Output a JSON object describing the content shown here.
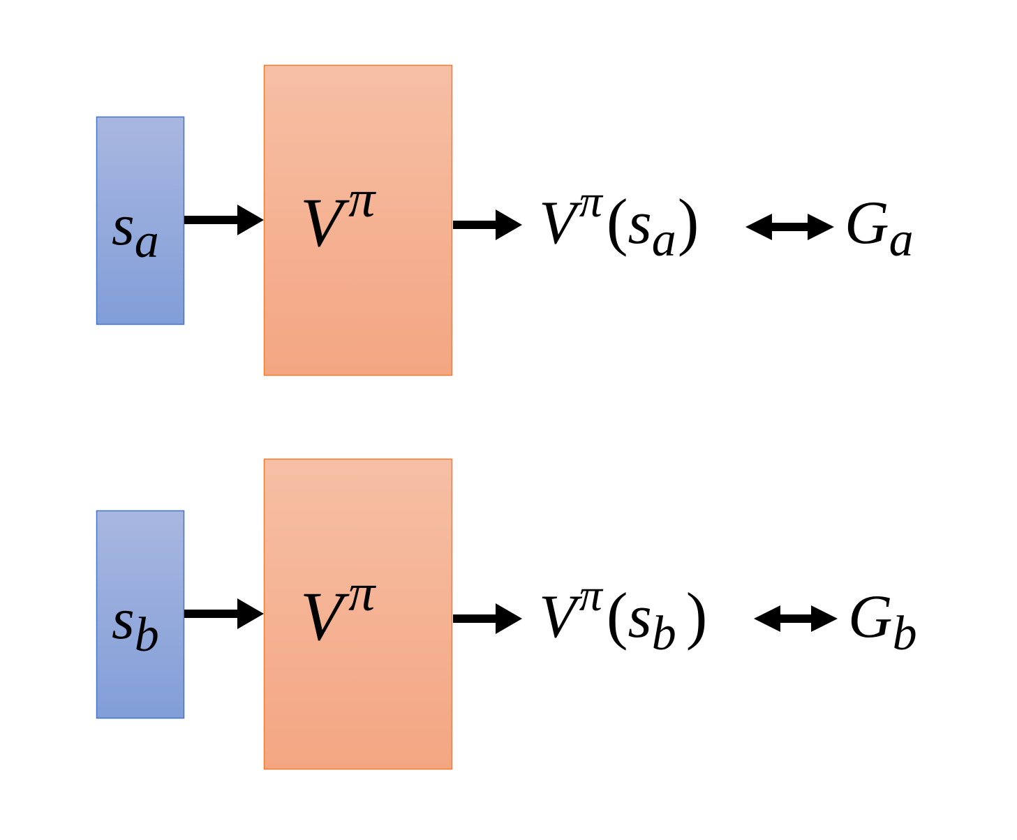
{
  "colors": {
    "input_fill_top": "#a8b7e0",
    "input_fill_bottom": "#829ed8",
    "input_stroke": "#4472c4",
    "model_fill_top": "#f6bfa5",
    "model_fill_bottom": "#f4a682",
    "model_stroke": "#ed7d31",
    "arrow": "#000000"
  },
  "rows": [
    {
      "input": {
        "base": "s",
        "sub": "a"
      },
      "model": {
        "base": "V",
        "sup": "π"
      },
      "output": {
        "base": "V",
        "sup": "π",
        "open": "(",
        "arg": "s",
        "sub": "a",
        "close": ")"
      },
      "target": {
        "base": "G",
        "sub": "a"
      }
    },
    {
      "input": {
        "base": "s",
        "sub": "b"
      },
      "model": {
        "base": "V",
        "sup": "π"
      },
      "output": {
        "base": "V",
        "sup": "π",
        "open": "(",
        "arg": "s",
        "sub": "b",
        "close": ")"
      },
      "target": {
        "base": "G",
        "sub": "b"
      }
    }
  ]
}
